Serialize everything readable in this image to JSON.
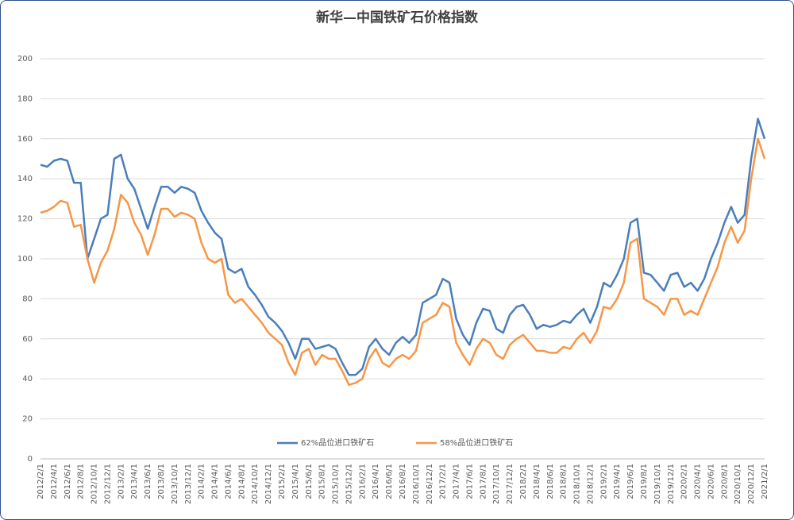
{
  "chart_data": {
    "type": "line",
    "title": "新华—中国铁矿石价格指数",
    "categories": [
      "2012/2/1",
      null,
      "2012/4/1",
      null,
      "2012/6/1",
      null,
      "2012/8/1",
      null,
      "2012/10/1",
      null,
      "2012/12/1",
      null,
      "2013/2/1",
      null,
      "2013/4/1",
      null,
      "2013/6/1",
      null,
      "2013/8/1",
      null,
      "2013/10/1",
      null,
      "2013/12/1",
      null,
      "2014/2/1",
      null,
      "2014/4/1",
      null,
      "2014/6/1",
      null,
      "2014/8/1",
      null,
      "2014/10/1",
      null,
      "2014/12/1",
      null,
      "2015/2/1",
      null,
      "2015/4/1",
      null,
      "2015/6/1",
      null,
      "2015/8/1",
      null,
      "2015/10/1",
      null,
      "2015/12/1",
      null,
      "2016/2/1",
      null,
      "2016/4/1",
      null,
      "2016/6/1",
      null,
      "2016/8/1",
      null,
      "2016/10/1",
      null,
      "2016/12/1",
      null,
      "2017/2/1",
      null,
      "2017/4/1",
      null,
      "2017/6/1",
      null,
      "2017/8/1",
      null,
      "2017/10/1",
      null,
      "2017/12/1",
      null,
      "2018/2/1",
      null,
      "2018/4/1",
      null,
      "2018/6/1",
      null,
      "2018/8/1",
      null,
      "2018/10/1",
      null,
      "2018/12/1",
      null,
      "2019/2/1",
      null,
      "2019/4/1",
      null,
      "2019/6/1",
      null,
      "2019/8/1",
      null,
      "2019/10/1",
      null,
      "2019/12/1",
      null,
      "2020/2/1",
      null,
      "2020/4/1",
      null,
      "2020/6/1",
      null,
      "2020/8/1",
      null,
      "2020/10/1",
      null,
      "2020/12/1",
      null,
      "2021/2/1"
    ],
    "series": [
      {
        "name": "62%品位进口铁矿石",
        "color": "#4a7ebb",
        "values": [
          147,
          146,
          149,
          150,
          149,
          138,
          138,
          100,
          110,
          120,
          122,
          150,
          152,
          140,
          135,
          125,
          115,
          126,
          136,
          136,
          133,
          136,
          135,
          133,
          124,
          118,
          113,
          110,
          95,
          93,
          95,
          86,
          82,
          77,
          71,
          68,
          64,
          58,
          50,
          60,
          60,
          55,
          56,
          57,
          55,
          48,
          42,
          42,
          45,
          56,
          60,
          55,
          52,
          58,
          61,
          58,
          62,
          78,
          80,
          82,
          90,
          88,
          70,
          62,
          57,
          68,
          75,
          74,
          65,
          63,
          72,
          76,
          77,
          72,
          65,
          67,
          66,
          67,
          69,
          68,
          72,
          75,
          68,
          76,
          88,
          86,
          92,
          100,
          118,
          120,
          93,
          92,
          88,
          84,
          92,
          93,
          86,
          88,
          84,
          90,
          100,
          108,
          118,
          126,
          118,
          122,
          150,
          170,
          160
        ]
      },
      {
        "name": "58%品位进口铁矿石",
        "color": "#f79646",
        "values": [
          123,
          124,
          126,
          129,
          128,
          116,
          117,
          100,
          88,
          98,
          104,
          115,
          132,
          128,
          118,
          112,
          102,
          112,
          125,
          125,
          121,
          123,
          122,
          120,
          108,
          100,
          98,
          100,
          82,
          78,
          80,
          76,
          72,
          68,
          63,
          60,
          57,
          48,
          42,
          53,
          55,
          47,
          52,
          50,
          50,
          44,
          37,
          38,
          40,
          50,
          55,
          48,
          46,
          50,
          52,
          50,
          54,
          68,
          70,
          72,
          78,
          76,
          58,
          52,
          47,
          55,
          60,
          58,
          52,
          50,
          57,
          60,
          62,
          58,
          54,
          54,
          53,
          53,
          56,
          55,
          60,
          63,
          58,
          64,
          76,
          75,
          80,
          88,
          108,
          110,
          80,
          78,
          76,
          72,
          80,
          80,
          72,
          74,
          72,
          80,
          88,
          96,
          108,
          116,
          108,
          114,
          140,
          160,
          150
        ]
      }
    ],
    "ylim": [
      0,
      200
    ],
    "yticks": [
      0,
      20,
      40,
      60,
      80,
      100,
      120,
      140,
      160,
      180,
      200
    ],
    "grid": true,
    "legend": "bottom"
  }
}
